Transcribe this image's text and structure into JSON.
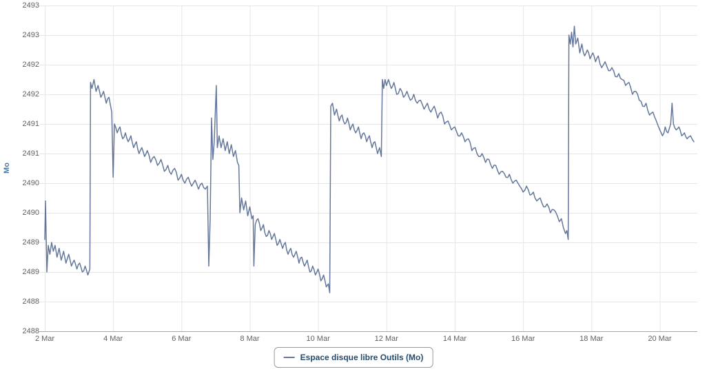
{
  "colors": {
    "background": "#ffffff",
    "grid": "#e6e6e6",
    "axis_line": "#a6a6a6",
    "tick_label": "#606060",
    "axis_title": "#4d759e",
    "legend_text": "#274b6d",
    "legend_border": "#999999",
    "series": "#64779b"
  },
  "chart_data": {
    "type": "line",
    "title": "",
    "xlabel": "",
    "ylabel": "Mo",
    "grid": true,
    "legend": {
      "position": "bottom",
      "items": [
        {
          "label": "Espace disque libre Outils (Mo)",
          "color": "#64779b"
        }
      ]
    },
    "x_axis": {
      "min_day": 2,
      "max_day": 21.1,
      "tick_days": [
        2,
        4,
        6,
        8,
        10,
        12,
        14,
        16,
        18,
        20
      ],
      "tick_labels": [
        "2 Mar",
        "4 Mar",
        "6 Mar",
        "8 Mar",
        "10 Mar",
        "12 Mar",
        "14 Mar",
        "16 Mar",
        "18 Mar",
        "20 Mar"
      ]
    },
    "y_axis": {
      "min": 2488,
      "max": 2493.5,
      "tick_values": [
        2493.5,
        2493,
        2492.5,
        2492,
        2491.5,
        2491,
        2490.5,
        2490,
        2489.5,
        2489,
        2488.5,
        2488
      ],
      "tick_labels": [
        "2493",
        "2493",
        "2492",
        "2492",
        "2491",
        "2491",
        "2490",
        "2490",
        "2489",
        "2489",
        "2488",
        "2488"
      ]
    },
    "series": [
      {
        "name": "Espace disque libre Outils (Mo)",
        "color": "#64779b",
        "points": [
          [
            2.0,
            2489.55
          ],
          [
            2.02,
            2490.2
          ],
          [
            2.06,
            2489.0
          ],
          [
            2.1,
            2489.45
          ],
          [
            2.15,
            2489.3
          ],
          [
            2.2,
            2489.5
          ],
          [
            2.25,
            2489.35
          ],
          [
            2.3,
            2489.45
          ],
          [
            2.36,
            2489.25
          ],
          [
            2.42,
            2489.4
          ],
          [
            2.48,
            2489.2
          ],
          [
            2.55,
            2489.35
          ],
          [
            2.62,
            2489.15
          ],
          [
            2.7,
            2489.3
          ],
          [
            2.78,
            2489.1
          ],
          [
            2.86,
            2489.2
          ],
          [
            2.94,
            2489.05
          ],
          [
            3.02,
            2489.15
          ],
          [
            3.1,
            2489.0
          ],
          [
            3.18,
            2489.1
          ],
          [
            3.26,
            2488.95
          ],
          [
            3.32,
            2489.05
          ],
          [
            3.34,
            2492.2
          ],
          [
            3.38,
            2492.1
          ],
          [
            3.44,
            2492.25
          ],
          [
            3.5,
            2492.05
          ],
          [
            3.56,
            2492.15
          ],
          [
            3.64,
            2491.95
          ],
          [
            3.72,
            2492.05
          ],
          [
            3.8,
            2491.85
          ],
          [
            3.88,
            2491.95
          ],
          [
            3.96,
            2491.7
          ],
          [
            4.0,
            2490.6
          ],
          [
            4.04,
            2491.5
          ],
          [
            4.12,
            2491.35
          ],
          [
            4.2,
            2491.45
          ],
          [
            4.28,
            2491.25
          ],
          [
            4.36,
            2491.35
          ],
          [
            4.44,
            2491.2
          ],
          [
            4.52,
            2491.3
          ],
          [
            4.6,
            2491.1
          ],
          [
            4.68,
            2491.2
          ],
          [
            4.76,
            2491.0
          ],
          [
            4.84,
            2491.1
          ],
          [
            4.92,
            2490.95
          ],
          [
            5.0,
            2491.05
          ],
          [
            5.1,
            2490.85
          ],
          [
            5.2,
            2490.95
          ],
          [
            5.3,
            2490.8
          ],
          [
            5.4,
            2490.9
          ],
          [
            5.5,
            2490.7
          ],
          [
            5.6,
            2490.8
          ],
          [
            5.7,
            2490.65
          ],
          [
            5.8,
            2490.75
          ],
          [
            5.9,
            2490.55
          ],
          [
            6.0,
            2490.65
          ],
          [
            6.1,
            2490.5
          ],
          [
            6.2,
            2490.6
          ],
          [
            6.3,
            2490.45
          ],
          [
            6.4,
            2490.55
          ],
          [
            6.5,
            2490.4
          ],
          [
            6.6,
            2490.5
          ],
          [
            6.7,
            2490.4
          ],
          [
            6.76,
            2490.45
          ],
          [
            6.8,
            2489.1
          ],
          [
            6.84,
            2489.9
          ],
          [
            6.88,
            2491.6
          ],
          [
            6.92,
            2490.9
          ],
          [
            6.96,
            2491.2
          ],
          [
            7.02,
            2492.15
          ],
          [
            7.05,
            2491.1
          ],
          [
            7.1,
            2491.3
          ],
          [
            7.16,
            2491.1
          ],
          [
            7.22,
            2491.25
          ],
          [
            7.28,
            2491.05
          ],
          [
            7.34,
            2491.2
          ],
          [
            7.4,
            2491.0
          ],
          [
            7.46,
            2491.15
          ],
          [
            7.52,
            2490.95
          ],
          [
            7.58,
            2491.05
          ],
          [
            7.64,
            2490.85
          ],
          [
            7.68,
            2490.8
          ],
          [
            7.71,
            2490.0
          ],
          [
            7.76,
            2490.25
          ],
          [
            7.82,
            2490.05
          ],
          [
            7.88,
            2490.2
          ],
          [
            7.94,
            2489.95
          ],
          [
            8.0,
            2490.1
          ],
          [
            8.06,
            2489.9
          ],
          [
            8.1,
            2489.95
          ],
          [
            8.12,
            2489.1
          ],
          [
            8.16,
            2489.8
          ],
          [
            8.24,
            2489.9
          ],
          [
            8.32,
            2489.7
          ],
          [
            8.4,
            2489.8
          ],
          [
            8.48,
            2489.6
          ],
          [
            8.56,
            2489.7
          ],
          [
            8.64,
            2489.55
          ],
          [
            8.72,
            2489.65
          ],
          [
            8.8,
            2489.45
          ],
          [
            8.88,
            2489.55
          ],
          [
            8.96,
            2489.4
          ],
          [
            9.04,
            2489.5
          ],
          [
            9.12,
            2489.3
          ],
          [
            9.2,
            2489.4
          ],
          [
            9.28,
            2489.25
          ],
          [
            9.36,
            2489.35
          ],
          [
            9.44,
            2489.15
          ],
          [
            9.52,
            2489.25
          ],
          [
            9.6,
            2489.1
          ],
          [
            9.68,
            2489.2
          ],
          [
            9.76,
            2489.0
          ],
          [
            9.84,
            2489.1
          ],
          [
            9.92,
            2488.95
          ],
          [
            10.0,
            2489.05
          ],
          [
            10.08,
            2488.85
          ],
          [
            10.16,
            2488.95
          ],
          [
            10.24,
            2488.75
          ],
          [
            10.3,
            2488.8
          ],
          [
            10.34,
            2488.65
          ],
          [
            10.37,
            2491.8
          ],
          [
            10.42,
            2491.85
          ],
          [
            10.48,
            2491.65
          ],
          [
            10.54,
            2491.75
          ],
          [
            10.62,
            2491.55
          ],
          [
            10.7,
            2491.65
          ],
          [
            10.78,
            2491.5
          ],
          [
            10.86,
            2491.6
          ],
          [
            10.94,
            2491.4
          ],
          [
            11.02,
            2491.5
          ],
          [
            11.1,
            2491.35
          ],
          [
            11.18,
            2491.45
          ],
          [
            11.26,
            2491.25
          ],
          [
            11.34,
            2491.35
          ],
          [
            11.42,
            2491.2
          ],
          [
            11.5,
            2491.3
          ],
          [
            11.58,
            2491.1
          ],
          [
            11.66,
            2491.2
          ],
          [
            11.74,
            2491.0
          ],
          [
            11.8,
            2491.1
          ],
          [
            11.85,
            2490.95
          ],
          [
            11.88,
            2492.25
          ],
          [
            11.92,
            2492.1
          ],
          [
            11.96,
            2492.25
          ],
          [
            12.0,
            2492.15
          ],
          [
            12.06,
            2492.25
          ],
          [
            12.14,
            2492.1
          ],
          [
            12.22,
            2492.2
          ],
          [
            12.3,
            2492.0
          ],
          [
            12.4,
            2492.1
          ],
          [
            12.5,
            2491.95
          ],
          [
            12.6,
            2492.05
          ],
          [
            12.7,
            2491.9
          ],
          [
            12.8,
            2492.0
          ],
          [
            12.9,
            2491.85
          ],
          [
            13.0,
            2491.9
          ],
          [
            13.1,
            2491.75
          ],
          [
            13.2,
            2491.85
          ],
          [
            13.3,
            2491.7
          ],
          [
            13.4,
            2491.8
          ],
          [
            13.5,
            2491.6
          ],
          [
            13.6,
            2491.7
          ],
          [
            13.7,
            2491.5
          ],
          [
            13.8,
            2491.55
          ],
          [
            13.9,
            2491.4
          ],
          [
            14.0,
            2491.45
          ],
          [
            14.1,
            2491.3
          ],
          [
            14.2,
            2491.35
          ],
          [
            14.3,
            2491.2
          ],
          [
            14.4,
            2491.25
          ],
          [
            14.5,
            2491.05
          ],
          [
            14.6,
            2491.1
          ],
          [
            14.7,
            2490.95
          ],
          [
            14.8,
            2491.0
          ],
          [
            14.9,
            2490.85
          ],
          [
            15.0,
            2490.9
          ],
          [
            15.1,
            2490.75
          ],
          [
            15.2,
            2490.8
          ],
          [
            15.3,
            2490.65
          ],
          [
            15.4,
            2490.7
          ],
          [
            15.5,
            2490.6
          ],
          [
            15.6,
            2490.65
          ],
          [
            15.7,
            2490.5
          ],
          [
            15.8,
            2490.55
          ],
          [
            15.9,
            2490.45
          ],
          [
            16.0,
            2490.35
          ],
          [
            16.1,
            2490.45
          ],
          [
            16.2,
            2490.3
          ],
          [
            16.3,
            2490.35
          ],
          [
            16.4,
            2490.2
          ],
          [
            16.5,
            2490.25
          ],
          [
            16.6,
            2490.1
          ],
          [
            16.7,
            2490.15
          ],
          [
            16.8,
            2490.0
          ],
          [
            16.9,
            2490.05
          ],
          [
            17.0,
            2489.95
          ],
          [
            17.06,
            2489.85
          ],
          [
            17.12,
            2489.9
          ],
          [
            17.18,
            2489.75
          ],
          [
            17.24,
            2489.65
          ],
          [
            17.28,
            2489.7
          ],
          [
            17.32,
            2489.55
          ],
          [
            17.34,
            2493.0
          ],
          [
            17.38,
            2492.85
          ],
          [
            17.42,
            2493.05
          ],
          [
            17.46,
            2492.8
          ],
          [
            17.5,
            2493.15
          ],
          [
            17.54,
            2492.85
          ],
          [
            17.6,
            2492.95
          ],
          [
            17.66,
            2492.7
          ],
          [
            17.72,
            2492.85
          ],
          [
            17.8,
            2492.65
          ],
          [
            17.88,
            2492.75
          ],
          [
            17.96,
            2492.6
          ],
          [
            18.04,
            2492.7
          ],
          [
            18.12,
            2492.55
          ],
          [
            18.2,
            2492.65
          ],
          [
            18.3,
            2492.45
          ],
          [
            18.4,
            2492.55
          ],
          [
            18.5,
            2492.4
          ],
          [
            18.6,
            2492.45
          ],
          [
            18.7,
            2492.3
          ],
          [
            18.8,
            2492.35
          ],
          [
            18.9,
            2492.25
          ],
          [
            19.0,
            2492.15
          ],
          [
            19.1,
            2492.2
          ],
          [
            19.2,
            2492.0
          ],
          [
            19.3,
            2492.05
          ],
          [
            19.4,
            2491.9
          ],
          [
            19.5,
            2491.8
          ],
          [
            19.6,
            2491.85
          ],
          [
            19.7,
            2491.65
          ],
          [
            19.8,
            2491.7
          ],
          [
            19.9,
            2491.55
          ],
          [
            20.0,
            2491.4
          ],
          [
            20.08,
            2491.3
          ],
          [
            20.16,
            2491.45
          ],
          [
            20.24,
            2491.35
          ],
          [
            20.32,
            2491.5
          ],
          [
            20.36,
            2491.85
          ],
          [
            20.4,
            2491.5
          ],
          [
            20.48,
            2491.4
          ],
          [
            20.56,
            2491.45
          ],
          [
            20.64,
            2491.3
          ],
          [
            20.72,
            2491.35
          ],
          [
            20.8,
            2491.25
          ],
          [
            20.9,
            2491.3
          ],
          [
            21.0,
            2491.2
          ]
        ]
      }
    ]
  }
}
